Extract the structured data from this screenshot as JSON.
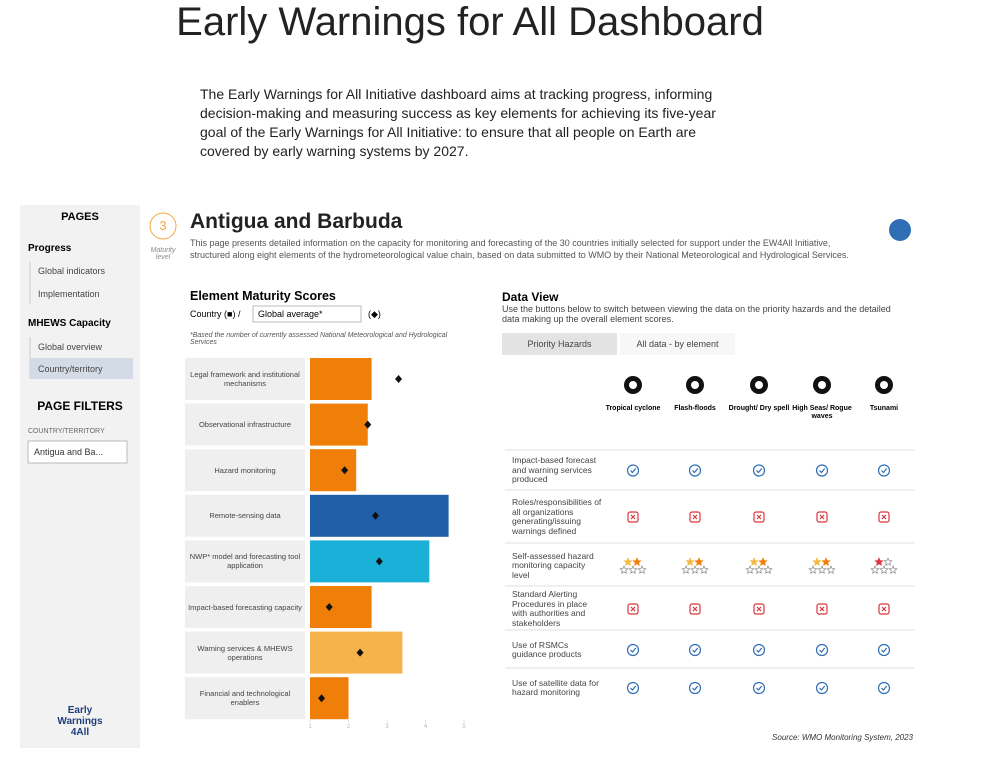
{
  "header": {
    "title": "Early Warnings for All Dashboard",
    "intro": "The Early Warnings for All Initiative dashboard aims at tracking progress, informing decision-making and measuring success as key elements for achieving its five-year goal of the Early Warnings for All Initiative: to ensure that all people on Earth are covered by early warning systems by 2027."
  },
  "sidebar": {
    "pages_heading": "PAGES",
    "groups": [
      {
        "title": "Progress",
        "items": [
          "Global indicators",
          "Implementation"
        ]
      },
      {
        "title": "MHEWS Capacity",
        "items": [
          "Global overview",
          "Country/territory"
        ]
      }
    ],
    "filters_heading": "PAGE FILTERS",
    "filter_label": "COUNTRY/TERRITORY",
    "filter_value": "Antigua and Ba...",
    "logo": [
      "Early",
      "Warnings",
      "4All"
    ]
  },
  "country": {
    "maturity_level": 3,
    "maturity_label": "Maturity level",
    "name": "Antigua and Barbuda",
    "description": "This page presents detailed information on the capacity for monitoring and forecasting of the 30 countries initially selected for support under the EW4All Initiative, structured along eight elements of the hydrometeorological value chain, based on data submitted to WMO by their National Meteorological and Hydrological Services."
  },
  "chart_data": {
    "type": "bar",
    "orientation": "horizontal",
    "title": "Element Maturity Scores",
    "legend_country": "Country (■) /",
    "legend_select": "Global average*",
    "legend_marker": "(◆)",
    "note": "*Based the number of currently assessed National Meteorological and Hydrological Services",
    "categories": [
      "Legal framework and institutional mechanisms",
      "Observational infrastructure",
      "Hazard monitoring",
      "Remote-sensing data",
      "NWP* model and forecasting tool application",
      "Impact-based forecasting capacity",
      "Warning services & MHEWS operations",
      "Financial and technological enablers"
    ],
    "values": [
      2.6,
      2.5,
      2.2,
      4.6,
      4.1,
      2.6,
      3.4,
      2.0
    ],
    "colors": [
      "#f07f09",
      "#f07f09",
      "#f07f09",
      "#1f5fa8",
      "#1ab0d8",
      "#f07f09",
      "#f6b24b",
      "#f07f09"
    ],
    "global_average": [
      3.3,
      2.5,
      1.9,
      2.7,
      2.8,
      1.5,
      2.3,
      1.3
    ],
    "xlim": [
      1,
      5
    ],
    "xticks": [
      1,
      2,
      3,
      4,
      5
    ]
  },
  "data_view": {
    "title": "Data View",
    "instructions": "Use the buttons below to switch between viewing the data on the priority hazards and the detailed data making up the overall element scores.",
    "tabs": [
      "Priority Hazards",
      "All data - by element"
    ],
    "hazards": [
      "Tropical cyclone",
      "Flash-floods",
      "Drought/ Dry spell",
      "High Seas/ Rogue waves",
      "Tsunami"
    ],
    "rows": [
      "Impact-based forecast and warning services produced",
      "Roles/responsibilities of all organizations generating/issuing warnings defined",
      "Self-assessed hazard monitoring capacity level",
      "Standard Alerting Procedures in place with authorities and stakeholders",
      "Use of RSMCs guidance products",
      "Use of satellite data for hazard monitoring"
    ]
  },
  "source": "Source: WMO Monitoring System, 2023"
}
